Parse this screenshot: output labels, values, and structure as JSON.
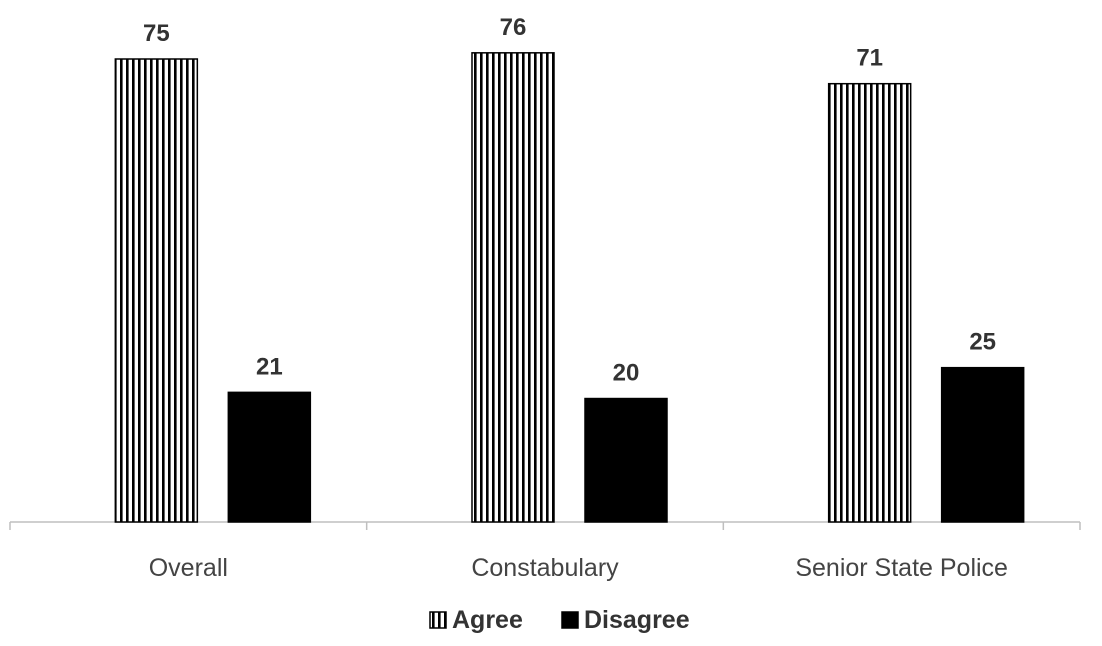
{
  "chart_data": {
    "type": "bar",
    "categories": [
      "Overall",
      "Constabulary",
      "Senior State Police"
    ],
    "series": [
      {
        "name": "Agree",
        "values": [
          75,
          76,
          71
        ],
        "pattern": "vertical-stripes",
        "color": "#000000"
      },
      {
        "name": "Disagree",
        "values": [
          21,
          20,
          25
        ],
        "pattern": "solid",
        "color": "#000000"
      }
    ],
    "ylim": [
      0,
      80
    ],
    "data_labels": true,
    "grid": false,
    "legend": "bottom-center",
    "title": "",
    "xlabel": "",
    "ylabel": ""
  }
}
